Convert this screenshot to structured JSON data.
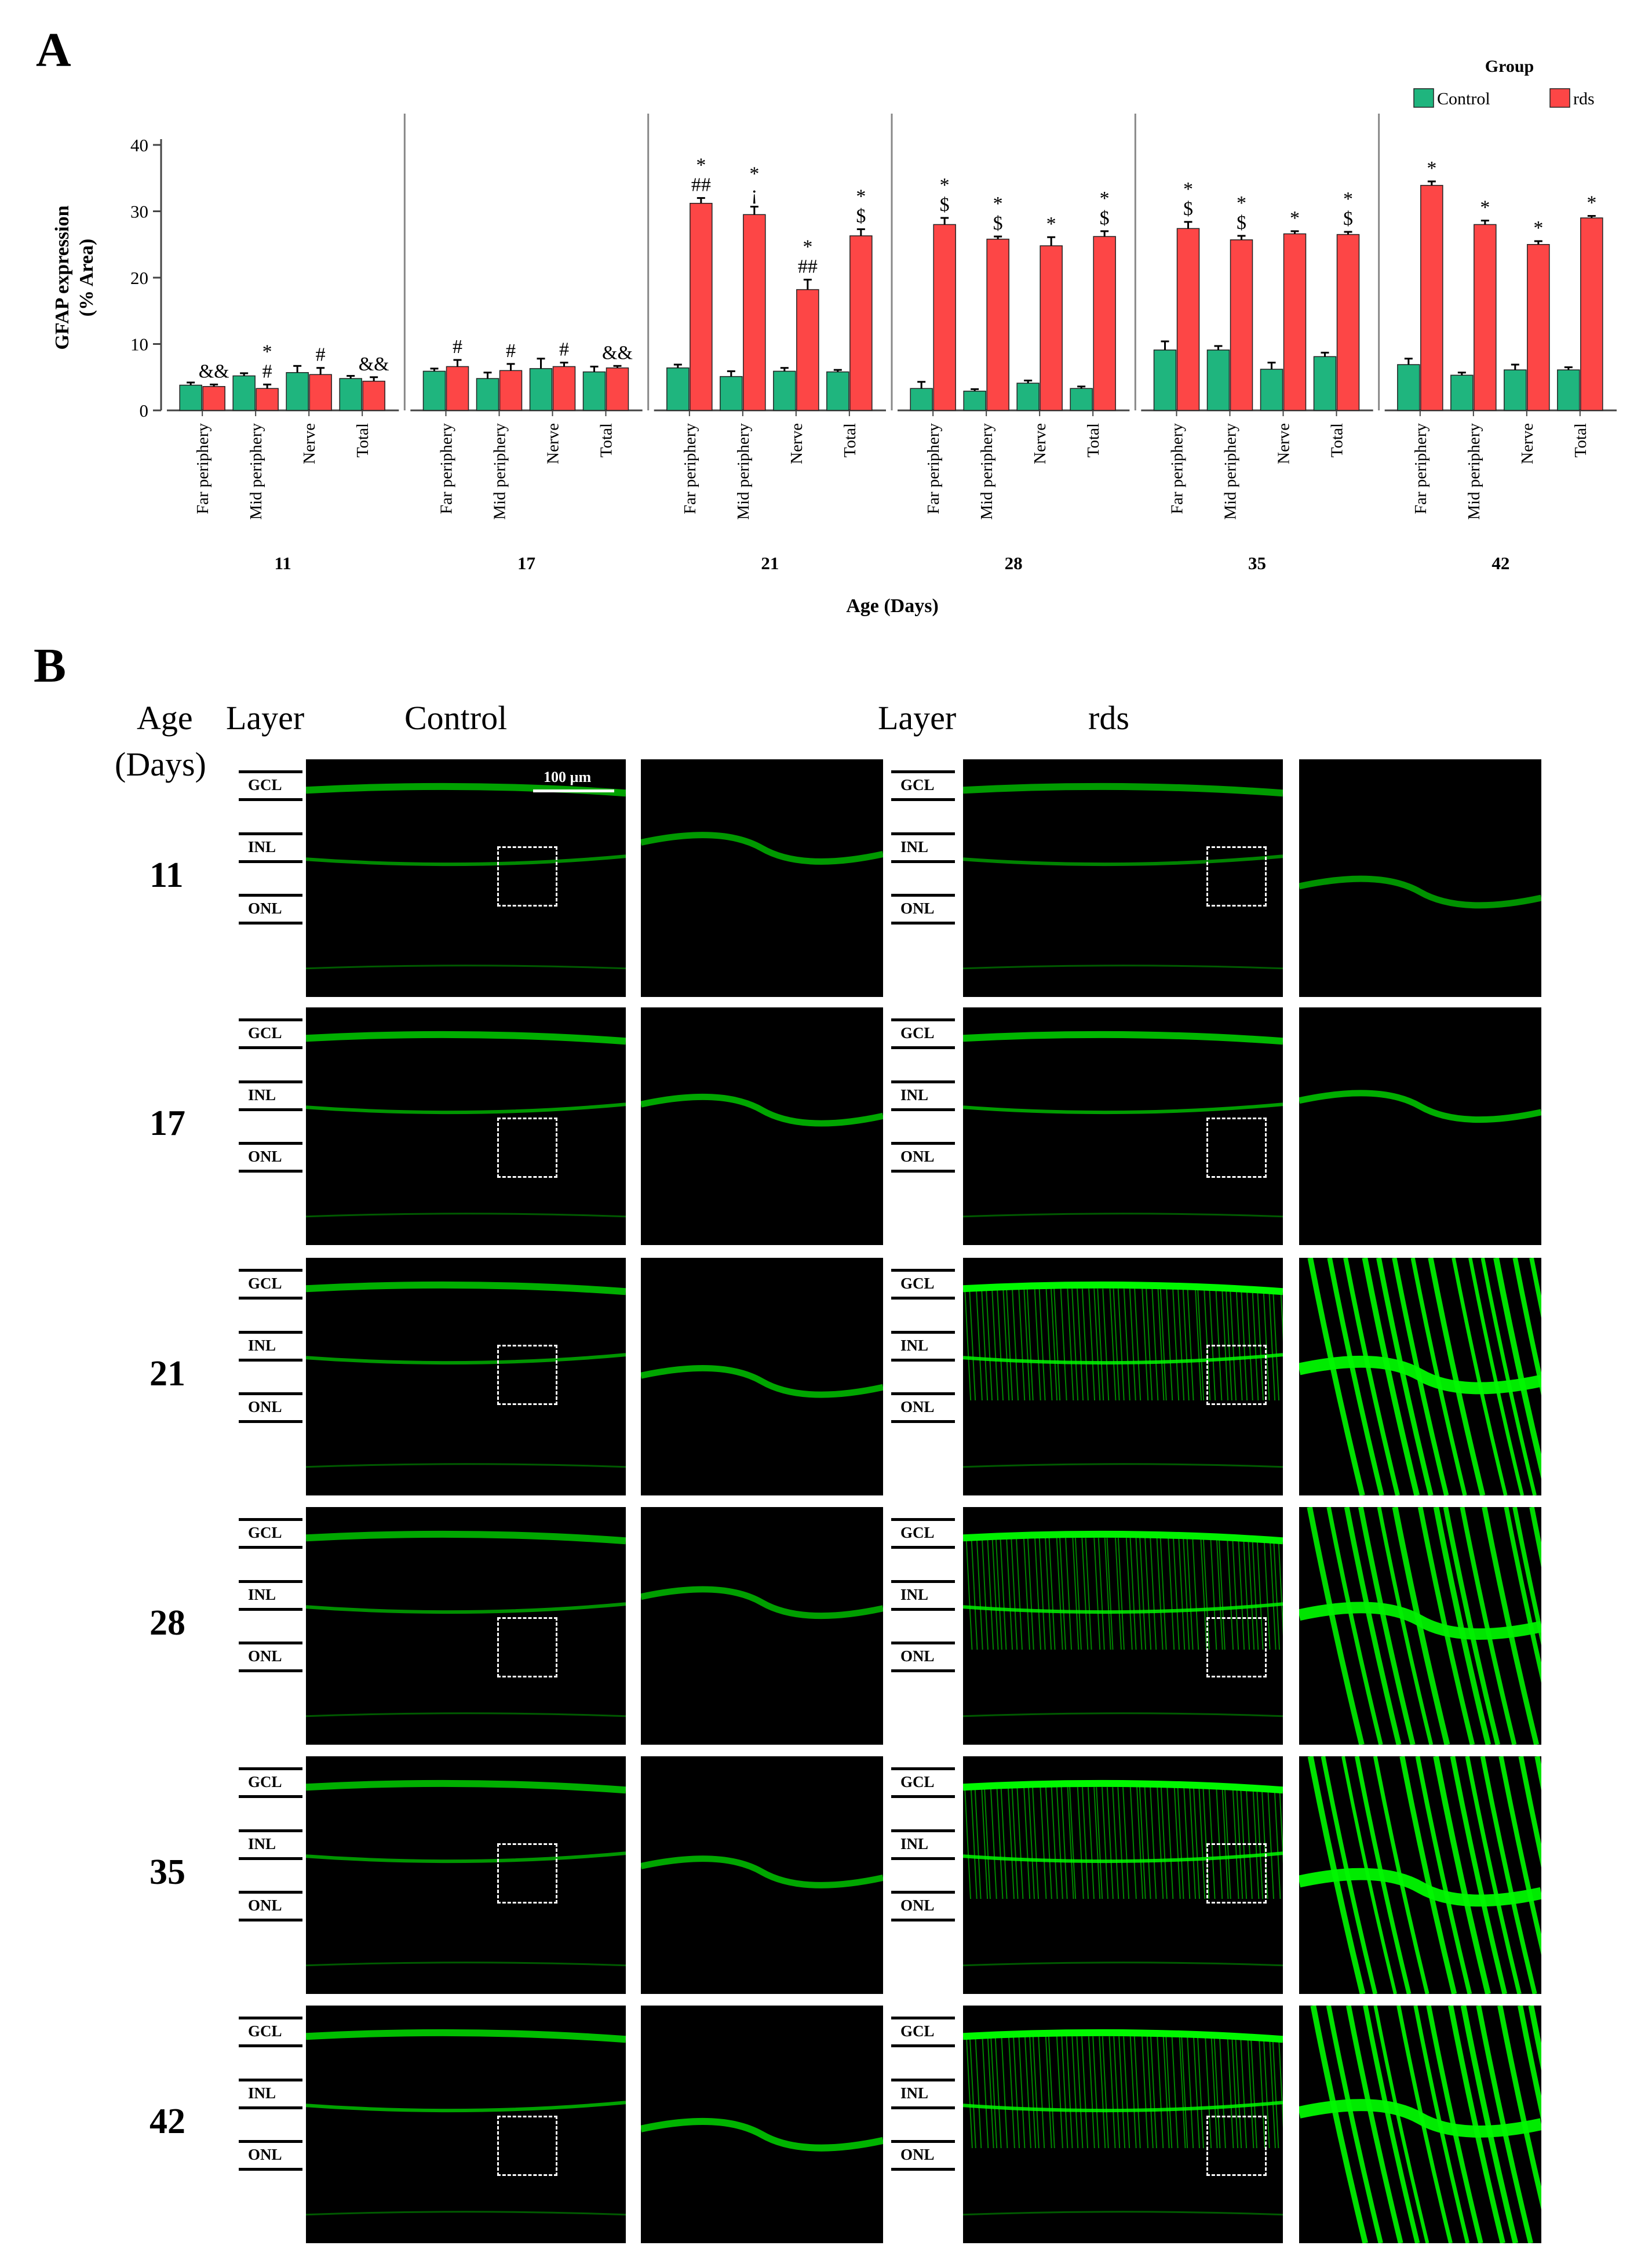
{
  "panels": {
    "a": "A",
    "b": "B"
  },
  "chart_data": {
    "type": "bar",
    "ylabel": "GFAP expression (% Area)",
    "ylabel_lines": [
      "GFAP expression",
      "(% Area)"
    ],
    "xlabel": "Age (Days)",
    "ylim": [
      0,
      40
    ],
    "yticks": [
      "0",
      "10",
      "20",
      "30",
      "40"
    ],
    "legend": {
      "title": "Group",
      "placement": "top-right"
    },
    "regions": [
      "Far periphery",
      "Mid periphery",
      "Nerve",
      "Total"
    ],
    "ages": [
      "11",
      "17",
      "21",
      "28",
      "35",
      "42"
    ],
    "series": [
      {
        "name": "Control",
        "color": "#1fb57e",
        "values": [
          [
            3.8,
            5.2,
            5.7,
            4.8
          ],
          [
            5.9,
            4.8,
            6.3,
            5.8
          ],
          [
            6.4,
            5.1,
            5.9,
            5.8
          ],
          [
            3.3,
            2.9,
            4.1,
            3.3
          ],
          [
            9.1,
            9.1,
            6.2,
            8.1
          ],
          [
            6.9,
            5.3,
            6.1,
            6.1
          ]
        ],
        "errors": [
          [
            0.4,
            0.4,
            1.0,
            0.4
          ],
          [
            0.4,
            0.9,
            1.5,
            0.8
          ],
          [
            0.5,
            0.8,
            0.5,
            0.3
          ],
          [
            1.0,
            0.3,
            0.4,
            0.3
          ],
          [
            1.3,
            0.6,
            1.0,
            0.6
          ],
          [
            0.9,
            0.4,
            0.8,
            0.4
          ]
        ]
      },
      {
        "name": "rds",
        "color": "#fd4646",
        "values": [
          [
            3.6,
            3.3,
            5.4,
            4.4
          ],
          [
            6.6,
            6.0,
            6.6,
            6.4
          ],
          [
            31.2,
            29.5,
            18.2,
            26.3
          ],
          [
            28.0,
            25.8,
            24.8,
            26.2
          ],
          [
            27.4,
            25.7,
            26.6,
            26.5
          ],
          [
            33.9,
            28.0,
            25.0,
            29.0
          ]
        ],
        "errors": [
          [
            0.3,
            0.6,
            1.0,
            0.6
          ],
          [
            1.0,
            1.0,
            0.6,
            0.3
          ],
          [
            0.8,
            1.2,
            1.5,
            1.0
          ],
          [
            1.0,
            0.4,
            1.3,
            0.8
          ],
          [
            1.0,
            0.6,
            0.4,
            0.4
          ],
          [
            0.6,
            0.6,
            0.5,
            0.3
          ]
        ]
      }
    ],
    "annotations": [
      {
        "age": "11",
        "region": "Far periphery",
        "series": "rds",
        "lines": [
          "&&"
        ]
      },
      {
        "age": "11",
        "region": "Mid periphery",
        "series": "rds",
        "lines": [
          "*",
          "#"
        ]
      },
      {
        "age": "11",
        "region": "Nerve",
        "series": "rds",
        "lines": [
          "#"
        ]
      },
      {
        "age": "11",
        "region": "Total",
        "series": "rds",
        "lines": [
          "&&"
        ]
      },
      {
        "age": "17",
        "region": "Far periphery",
        "series": "rds",
        "lines": [
          "#"
        ]
      },
      {
        "age": "17",
        "region": "Mid periphery",
        "series": "rds",
        "lines": [
          "#"
        ]
      },
      {
        "age": "17",
        "region": "Nerve",
        "series": "rds",
        "lines": [
          "#"
        ]
      },
      {
        "age": "17",
        "region": "Total",
        "series": "rds",
        "lines": [
          "&&"
        ]
      },
      {
        "age": "21",
        "region": "Far periphery",
        "series": "rds",
        "lines": [
          "*",
          "##"
        ]
      },
      {
        "age": "21",
        "region": "Mid periphery",
        "series": "rds",
        "lines": [
          "*",
          "¡"
        ]
      },
      {
        "age": "21",
        "region": "Nerve",
        "series": "rds",
        "lines": [
          "*",
          "##"
        ]
      },
      {
        "age": "21",
        "region": "Total",
        "series": "rds",
        "lines": [
          "*",
          "$"
        ]
      },
      {
        "age": "28",
        "region": "Far periphery",
        "series": "rds",
        "lines": [
          "*",
          "$"
        ]
      },
      {
        "age": "28",
        "region": "Mid periphery",
        "series": "rds",
        "lines": [
          "*",
          "$"
        ]
      },
      {
        "age": "28",
        "region": "Nerve",
        "series": "rds",
        "lines": [
          "*"
        ]
      },
      {
        "age": "28",
        "region": "Total",
        "series": "rds",
        "lines": [
          "*",
          "$"
        ]
      },
      {
        "age": "35",
        "region": "Far periphery",
        "series": "rds",
        "lines": [
          "*",
          "$"
        ]
      },
      {
        "age": "35",
        "region": "Mid periphery",
        "series": "rds",
        "lines": [
          "*",
          "$"
        ]
      },
      {
        "age": "35",
        "region": "Nerve",
        "series": "rds",
        "lines": [
          "*"
        ]
      },
      {
        "age": "35",
        "region": "Total",
        "series": "rds",
        "lines": [
          "*",
          "$"
        ]
      },
      {
        "age": "42",
        "region": "Far periphery",
        "series": "rds",
        "lines": [
          "*"
        ]
      },
      {
        "age": "42",
        "region": "Mid periphery",
        "series": "rds",
        "lines": [
          "*"
        ]
      },
      {
        "age": "42",
        "region": "Nerve",
        "series": "rds",
        "lines": [
          "*"
        ]
      },
      {
        "age": "42",
        "region": "Total",
        "series": "rds",
        "lines": [
          "*"
        ]
      }
    ]
  },
  "micrographs": {
    "headers": {
      "age": "Age",
      "days": "(Days)",
      "layer_left": "Layer",
      "control": "Control",
      "layer_right": "Layer",
      "rds": "rds"
    },
    "scale_bar": "100 µm",
    "layers": [
      "GCL",
      "INL",
      "ONL"
    ],
    "rows": [
      {
        "age": "11",
        "control_intensity": 0.35,
        "rds_intensity": 0.3
      },
      {
        "age": "17",
        "control_intensity": 0.45,
        "rds_intensity": 0.5
      },
      {
        "age": "21",
        "control_intensity": 0.45,
        "rds_intensity": 0.95
      },
      {
        "age": "28",
        "control_intensity": 0.4,
        "rds_intensity": 0.9
      },
      {
        "age": "35",
        "control_intensity": 0.45,
        "rds_intensity": 0.95
      },
      {
        "age": "42",
        "control_intensity": 0.55,
        "rds_intensity": 0.95
      }
    ]
  }
}
